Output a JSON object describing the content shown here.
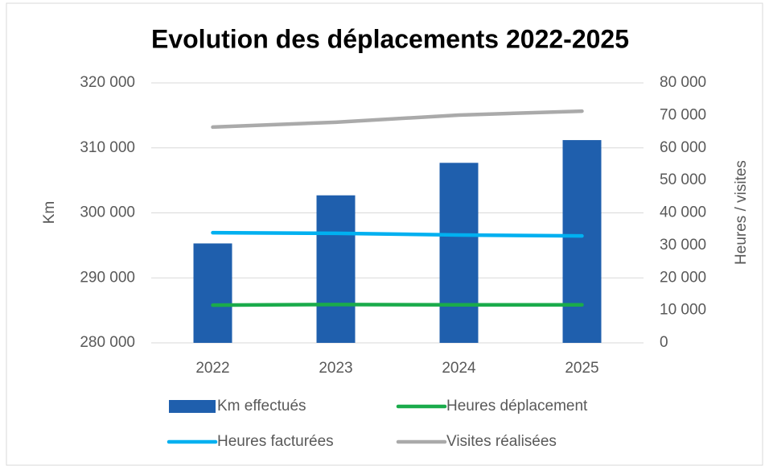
{
  "chart_data": {
    "type": "bar",
    "title": "Evolution des déplacements 2022-2025",
    "categories": [
      "2022",
      "2023",
      "2024",
      "2025"
    ],
    "ylabel": "Km",
    "y2label": "Heures / visites",
    "ylim": [
      280000,
      320000
    ],
    "yticks": [
      {
        "value": 280000,
        "label": "280 000"
      },
      {
        "value": 290000,
        "label": "290 000"
      },
      {
        "value": 300000,
        "label": "300 000"
      },
      {
        "value": 310000,
        "label": "310 000"
      },
      {
        "value": 320000,
        "label": "320 000"
      }
    ],
    "y2lim": [
      0,
      80000
    ],
    "y2ticks": [
      0,
      {
        "value": 10000,
        "label": "10 000"
      },
      {
        "value": 20000,
        "label": "20 000"
      },
      {
        "value": 30000,
        "label": "30 000"
      },
      {
        "value": 40000,
        "label": "40 000"
      },
      {
        "value": 50000,
        "label": "50 000"
      },
      {
        "value": 60000,
        "label": "60 000"
      },
      {
        "value": 70000,
        "label": "70 000"
      },
      {
        "value": 80000,
        "label": "80 000"
      }
    ],
    "grid": true,
    "series": [
      {
        "name": "Km effectués",
        "type": "bar",
        "color": "#1f5fad",
        "values": [
          295300,
          302700,
          307700,
          311200
        ]
      },
      {
        "name": "Heures déplacement",
        "type": "line",
        "axis": "y2",
        "color": "#1aab4b",
        "values": [
          11600,
          11800,
          11700,
          11700
        ]
      },
      {
        "name": "Heures facturées",
        "type": "line",
        "axis": "y2",
        "color": "#00b0f0",
        "values": [
          33900,
          33700,
          33200,
          32900
        ]
      },
      {
        "name": "Visites réalisées",
        "type": "line",
        "axis": "y2",
        "color": "#aaaaaa",
        "values": [
          66400,
          67900,
          70100,
          71300
        ]
      }
    ]
  }
}
